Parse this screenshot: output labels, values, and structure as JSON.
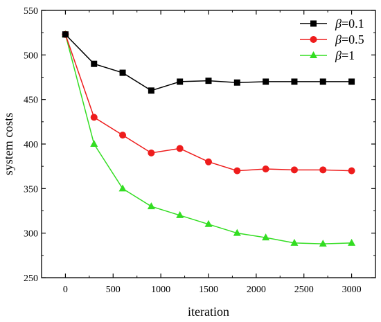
{
  "chart_data": {
    "type": "line",
    "title": "",
    "xlabel": "iteration",
    "ylabel": "system costs",
    "xlim": [
      -250,
      3250
    ],
    "ylim": [
      250,
      550
    ],
    "x_ticks": [
      0,
      500,
      1000,
      1500,
      2000,
      2500,
      3000
    ],
    "y_ticks": [
      250,
      300,
      350,
      400,
      450,
      500,
      550
    ],
    "x_tick_labels": [
      "0",
      "500",
      "1000",
      "1500",
      "2000",
      "2500",
      "3000"
    ],
    "y_tick_labels": [
      "250",
      "300",
      "350",
      "400",
      "450",
      "500",
      "550"
    ],
    "grid": false,
    "legend_position": "top-right",
    "x": [
      0,
      300,
      600,
      900,
      1200,
      1500,
      1800,
      2100,
      2400,
      2700,
      3000
    ],
    "series": [
      {
        "name": "β=0.1",
        "legend_symbol": "β",
        "legend_value": "=0.1",
        "color": "#000000",
        "marker": "square",
        "values": [
          523,
          490,
          480,
          460,
          470,
          471,
          469,
          470,
          470,
          470,
          470
        ]
      },
      {
        "name": "β=0.5",
        "legend_symbol": "β",
        "legend_value": "=0.5",
        "color": "#ee1c1c",
        "marker": "circle",
        "values": [
          523,
          430,
          410,
          390,
          395,
          380,
          370,
          372,
          371,
          371,
          370
        ]
      },
      {
        "name": "β=1",
        "legend_symbol": "β",
        "legend_value": "=1",
        "color": "#33dd22",
        "marker": "triangle",
        "values": [
          523,
          400,
          350,
          330,
          320,
          310,
          300,
          295,
          289,
          288,
          289
        ]
      }
    ]
  }
}
